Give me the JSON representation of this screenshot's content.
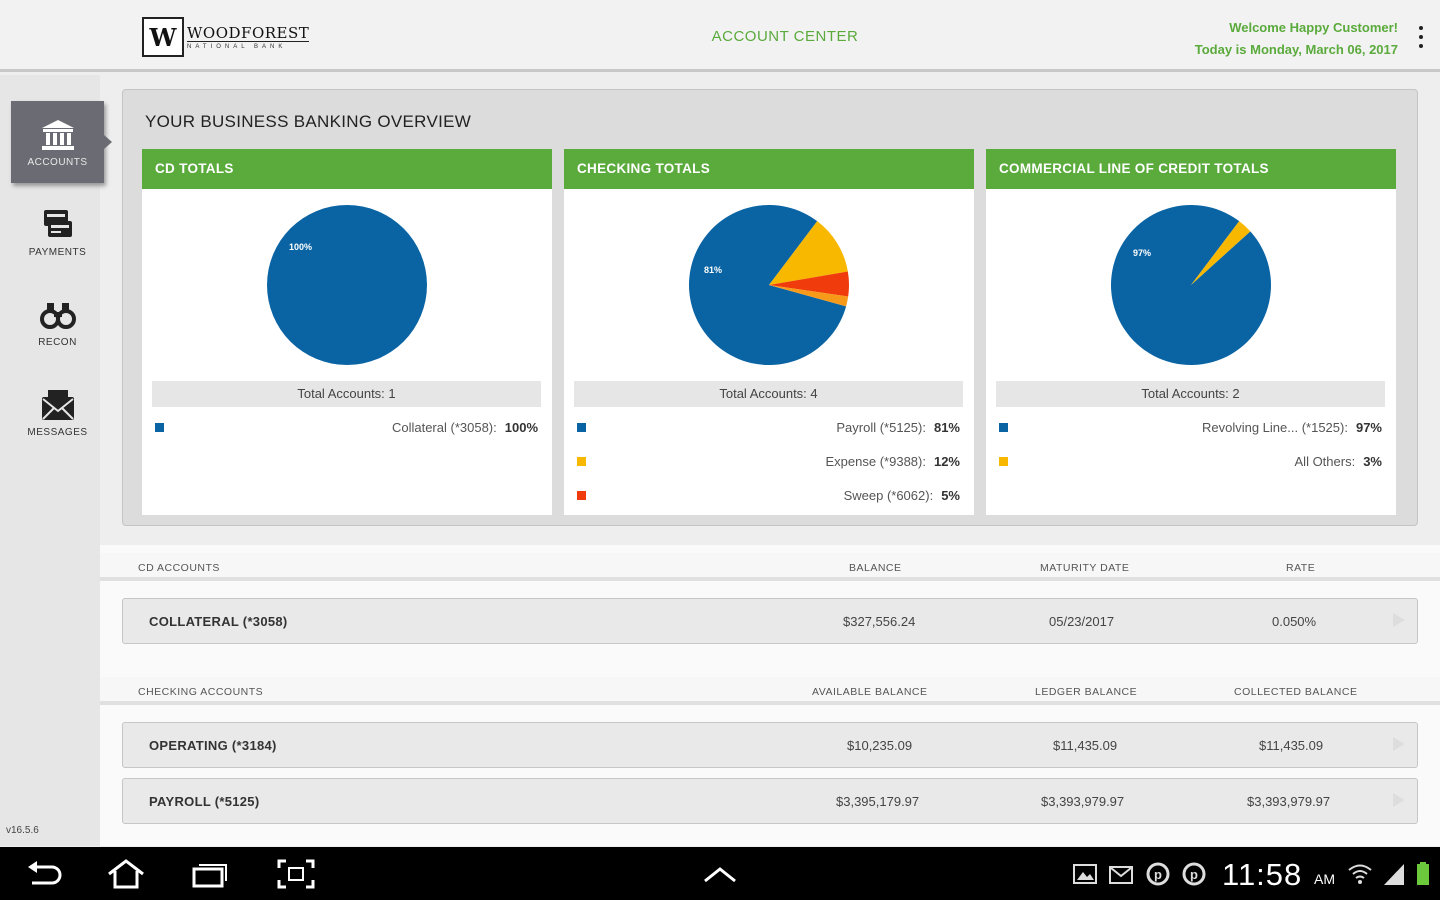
{
  "header": {
    "logo_name": "WOODFOREST",
    "logo_sub": "NATIONAL BANK",
    "title": "ACCOUNT CENTER",
    "welcome": "Welcome Happy Customer!",
    "date": "Today is Monday, March 06, 2017"
  },
  "sidebar": {
    "items": [
      {
        "label": "ACCOUNTS",
        "icon": "bank-icon",
        "active": true
      },
      {
        "label": "PAYMENTS",
        "icon": "payments-icon",
        "active": false
      },
      {
        "label": "RECON",
        "icon": "binoculars-icon",
        "active": false
      },
      {
        "label": "MESSAGES",
        "icon": "envelope-icon",
        "active": false
      }
    ],
    "version": "v16.5.6"
  },
  "overview": {
    "title": "YOUR BUSINESS BANKING OVERVIEW",
    "cards": [
      {
        "title": "CD TOTALS",
        "pie_label": "100%",
        "total": "Total Accounts: 1",
        "slices": [
          100
        ],
        "legend": [
          {
            "label": "Collateral (*3058):",
            "pct": "100%",
            "color": "#0a64a4"
          }
        ]
      },
      {
        "title": "CHECKING TOTALS",
        "pie_label": "81%",
        "total": "Total Accounts: 4",
        "slices": [
          81,
          12,
          5,
          2
        ],
        "legend": [
          {
            "label": "Payroll (*5125):",
            "pct": "81%",
            "color": "#0a64a4"
          },
          {
            "label": "Expense (*9388):",
            "pct": "12%",
            "color": "#f8b800"
          },
          {
            "label": "Sweep (*6062):",
            "pct": "5%",
            "color": "#f03c0c"
          }
        ]
      },
      {
        "title": "COMMERCIAL LINE OF CREDIT TOTALS",
        "pie_label": "97%",
        "total": "Total Accounts: 2",
        "slices": [
          97,
          3
        ],
        "legend": [
          {
            "label": "Revolving Line... (*1525):",
            "pct": "97%",
            "color": "#0a64a4"
          },
          {
            "label": "All Others:",
            "pct": "3%",
            "color": "#f8b800"
          }
        ]
      }
    ],
    "slice_colors": [
      "#0a64a4",
      "#f8b800",
      "#f03c0c",
      "#f79a1a"
    ]
  },
  "cd_section": {
    "header": "CD ACCOUNTS",
    "columns": [
      "BALANCE",
      "MATURITY DATE",
      "RATE"
    ],
    "rows": [
      {
        "name": "COLLATERAL (*3058)",
        "balance": "$327,556.24",
        "maturity": "05/23/2017",
        "rate": "0.050%"
      }
    ]
  },
  "checking_section": {
    "header": "CHECKING ACCOUNTS",
    "columns": [
      "AVAILABLE BALANCE",
      "LEDGER BALANCE",
      "COLLECTED BALANCE"
    ],
    "rows": [
      {
        "name": "OPERATING (*3184)",
        "available": "$10,235.09",
        "ledger": "$11,435.09",
        "collected": "$11,435.09"
      },
      {
        "name": "PAYROLL (*5125)",
        "available": "$3,395,179.97",
        "ledger": "$3,393,979.97",
        "collected": "$3,393,979.97"
      }
    ]
  },
  "system_bar": {
    "time": "11:58",
    "ampm": "AM"
  }
}
